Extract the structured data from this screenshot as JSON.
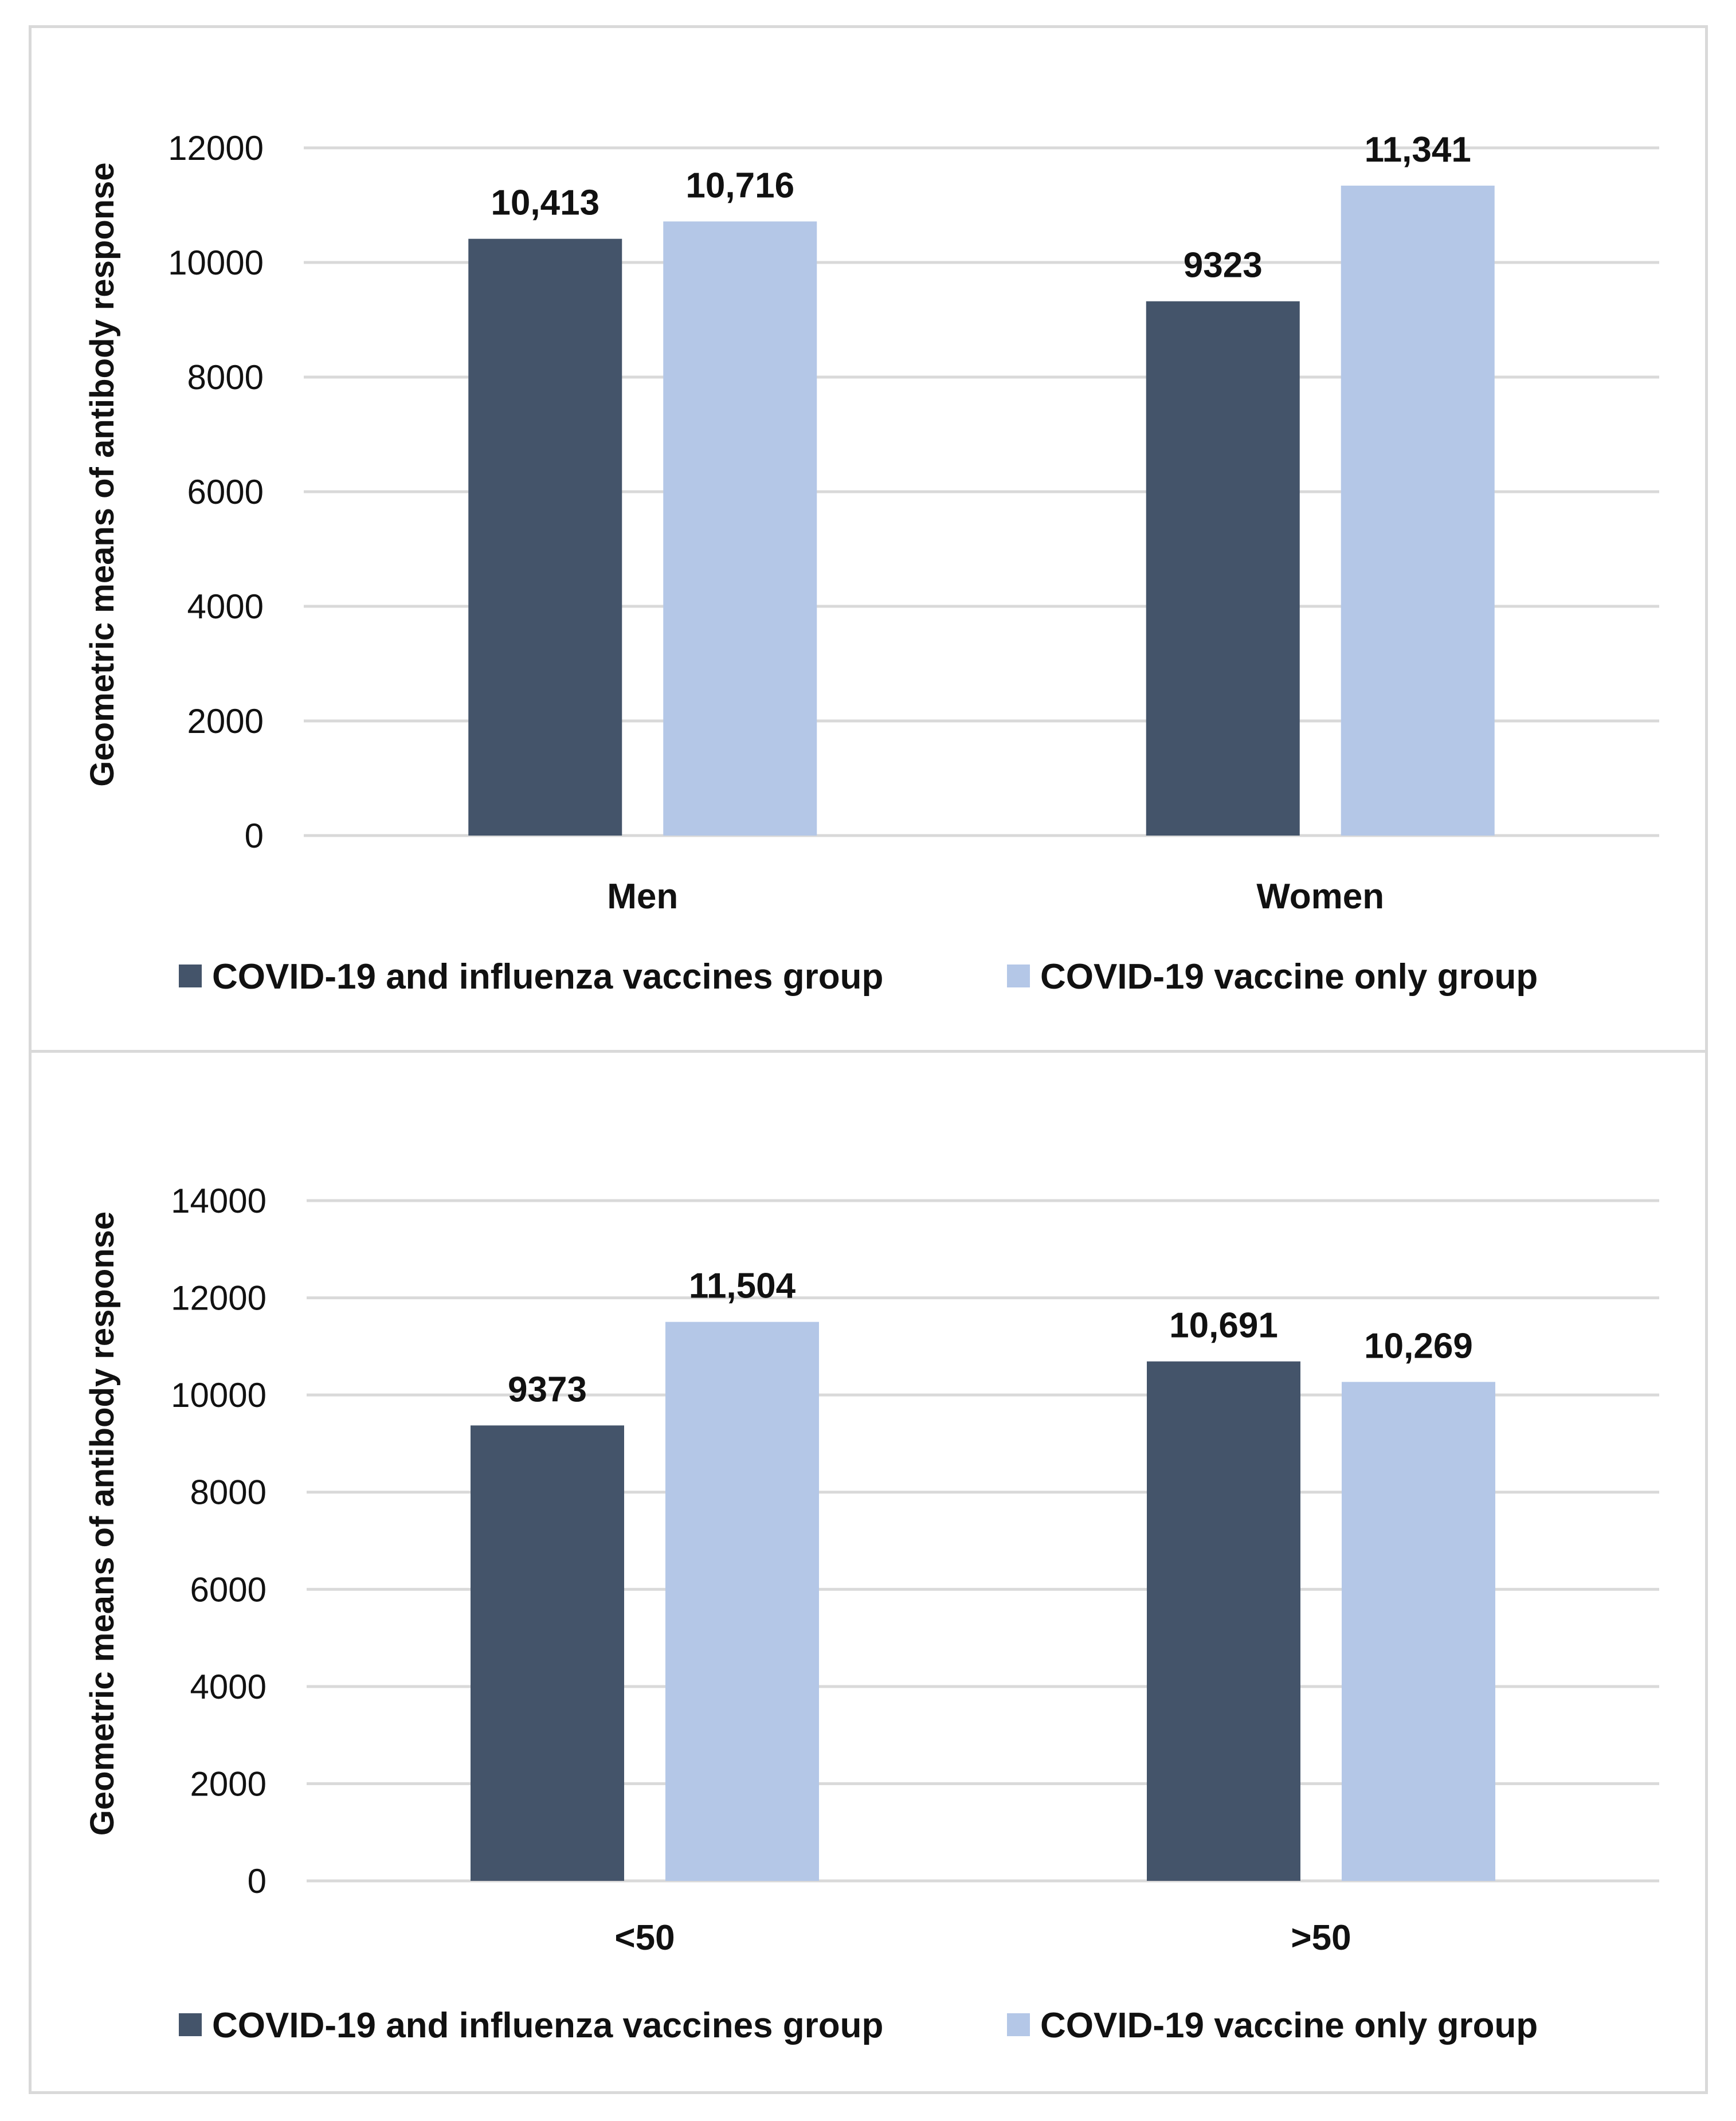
{
  "chart_data": [
    {
      "type": "bar",
      "title": "",
      "categories": [
        "Men",
        "Women"
      ],
      "series": [
        {
          "name": "COVID-19 and influenza vaccines group",
          "values": [
            10413,
            9323
          ],
          "labels": [
            "10,413",
            "9323"
          ],
          "color": "#44546a"
        },
        {
          "name": "COVID-19 vaccine only group",
          "values": [
            10716,
            11341
          ],
          "labels": [
            "10,716",
            "11,341"
          ],
          "color": "#b4c7e7"
        }
      ],
      "xlabel": "",
      "ylabel": "Geometric means of antibody response",
      "ylim": [
        0,
        12000
      ],
      "yticks": [
        0,
        2000,
        4000,
        6000,
        8000,
        10000,
        12000
      ],
      "grid": true,
      "legend": "bottom"
    },
    {
      "type": "bar",
      "title": "",
      "categories": [
        "<50",
        ">50"
      ],
      "series": [
        {
          "name": "COVID-19 and influenza vaccines group",
          "values": [
            9373,
            10691
          ],
          "labels": [
            "9373",
            "10,691"
          ],
          "color": "#44546a"
        },
        {
          "name": "COVID-19 vaccine only group",
          "values": [
            11504,
            10269
          ],
          "labels": [
            "11,504",
            "10,269"
          ],
          "color": "#b4c7e7"
        }
      ],
      "xlabel": "",
      "ylabel": "Geometric means of antibody response",
      "ylim": [
        0,
        14000
      ],
      "yticks": [
        0,
        2000,
        4000,
        6000,
        8000,
        10000,
        12000,
        14000
      ],
      "grid": true,
      "legend": "bottom"
    }
  ]
}
